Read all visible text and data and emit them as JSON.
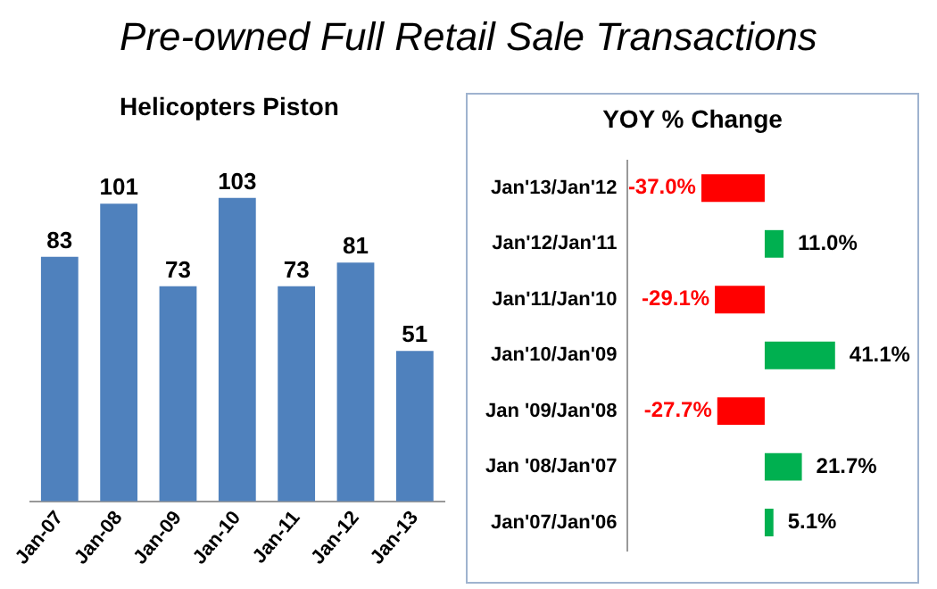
{
  "chart_data": [
    {
      "type": "other",
      "title": "Pre-owned Full Retail Sale Transactions"
    },
    {
      "type": "bar",
      "title": "Helicopters Piston",
      "categories": [
        "Jan-07",
        "Jan-08",
        "Jan-09",
        "Jan-10",
        "Jan-11",
        "Jan-12",
        "Jan-13"
      ],
      "values": [
        83,
        101,
        73,
        103,
        73,
        81,
        51
      ],
      "color": "#4f81bd",
      "data_labels": true,
      "tick_labels": "x"
    },
    {
      "type": "bar",
      "orientation": "horizontal",
      "title": "YOY % Change",
      "categories": [
        "Jan'13/Jan'12",
        "Jan'12/Jan'11",
        "Jan'11/Jan'10",
        "Jan'10/Jan'09",
        "Jan '09/Jan'08",
        "Jan '08/Jan'07",
        "Jan'07/Jan'06"
      ],
      "values": [
        -37.0,
        11.0,
        -29.1,
        41.1,
        -27.7,
        21.7,
        5.1
      ],
      "colors": [
        "#ff0000",
        "#00b050",
        "#ff0000",
        "#00b050",
        "#ff0000",
        "#00b050",
        "#00b050"
      ],
      "value_labels": [
        "-37.0%",
        "11.0%",
        "-29.1%",
        "41.1%",
        "-27.7%",
        "21.7%",
        "5.1%"
      ],
      "tick_labels": "y"
    }
  ]
}
